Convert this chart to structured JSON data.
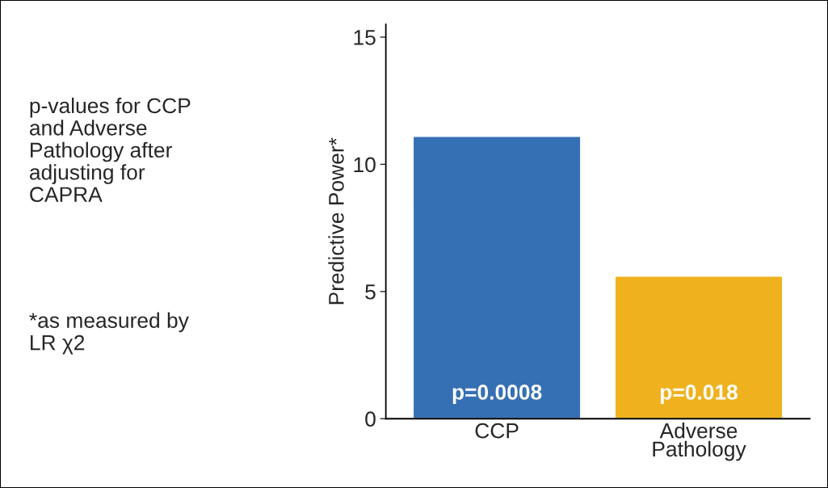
{
  "chart_data": {
    "type": "bar",
    "ylabel": "Predictive Power*",
    "categories": [
      "CCP",
      "Adverse\nPathology"
    ],
    "values": [
      11.1,
      5.6
    ],
    "colors": [
      "#3670b4",
      "#efb21e"
    ],
    "ylim": [
      0,
      15.5
    ],
    "yticks": [
      0,
      5,
      10,
      15
    ],
    "grid": false,
    "legend": false,
    "annotations": [
      "p-values for CCP\nand Adverse\nPathology after\nadjusting for\nCAPRA",
      "*as measured by\nLR χ2",
      "p=0.0008",
      "p=0.018"
    ]
  }
}
